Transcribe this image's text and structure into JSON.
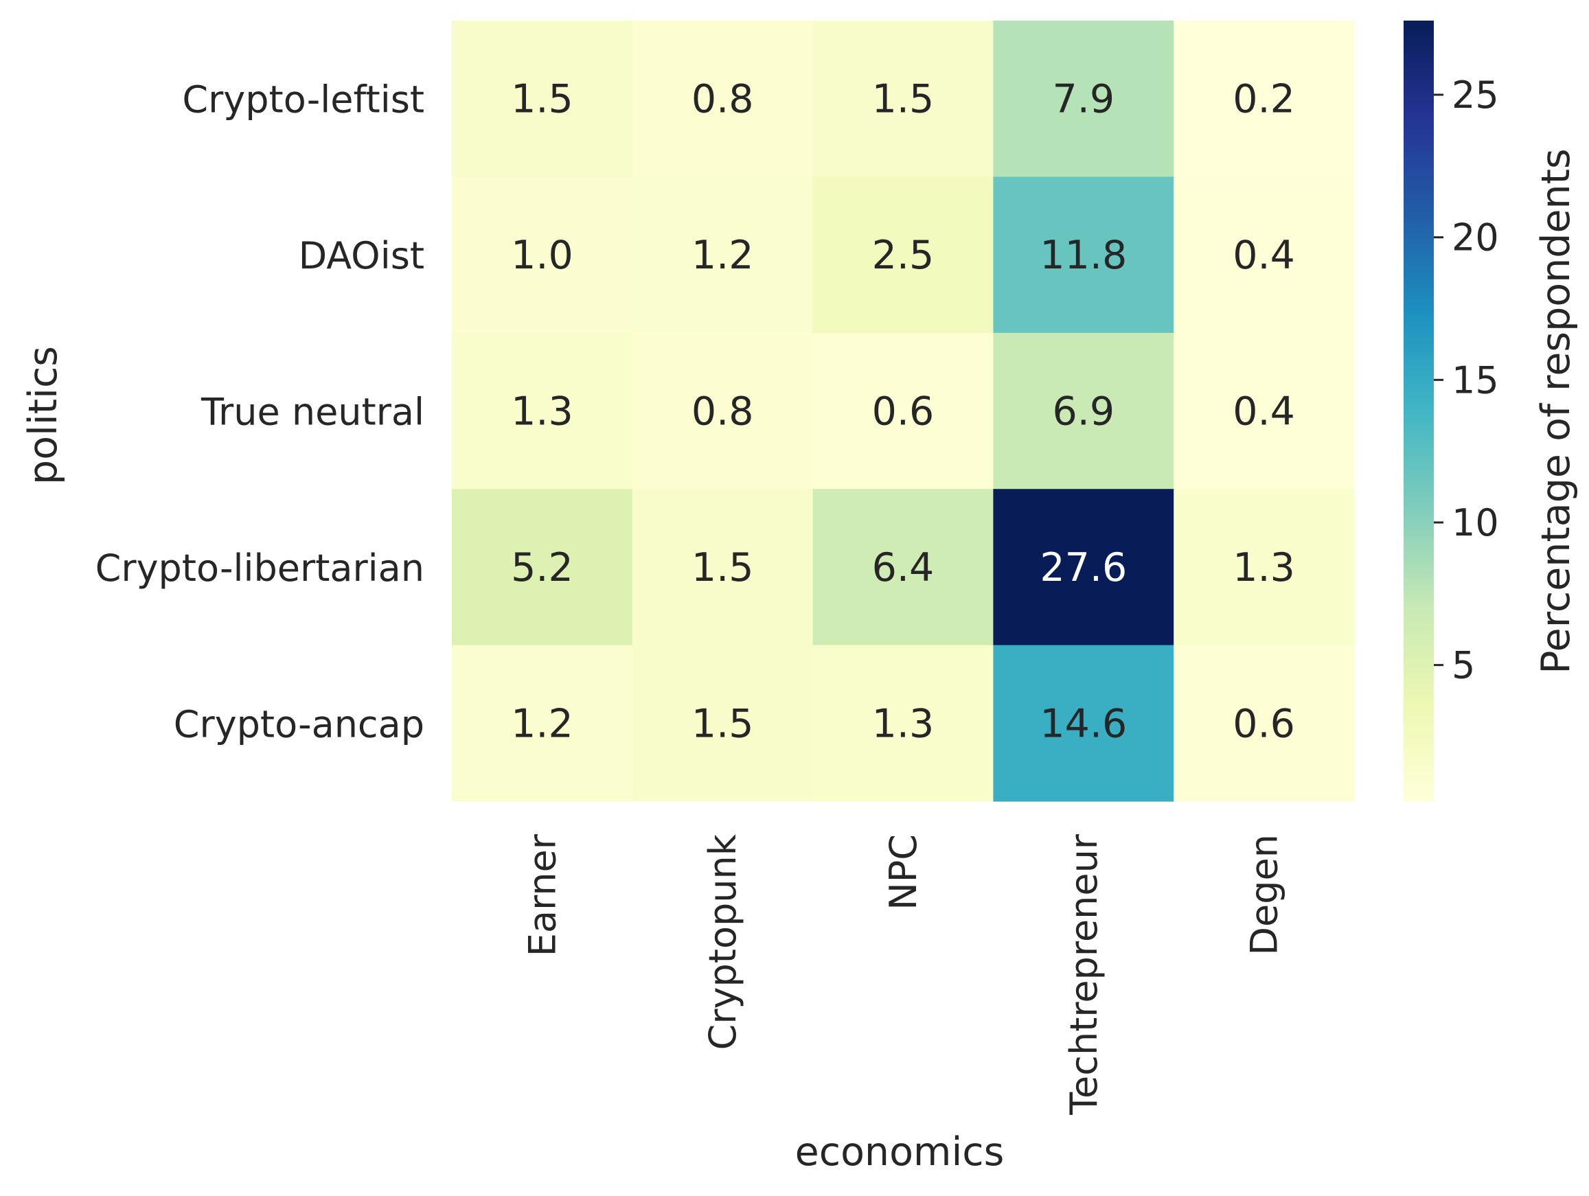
{
  "chart_data": {
    "type": "heatmap",
    "xlabel": "economics",
    "ylabel": "politics",
    "x_categories": [
      "Earner",
      "Cryptopunk",
      "NPC",
      "Techtrepreneur",
      "Degen"
    ],
    "y_categories": [
      "Crypto-leftist",
      "DAOist",
      "True neutral",
      "Crypto-libertarian",
      "Crypto-ancap"
    ],
    "values": [
      [
        1.5,
        0.8,
        1.5,
        7.9,
        0.2
      ],
      [
        1.0,
        1.2,
        2.5,
        11.8,
        0.4
      ],
      [
        1.3,
        0.8,
        0.6,
        6.9,
        0.4
      ],
      [
        5.2,
        1.5,
        6.4,
        27.6,
        1.3
      ],
      [
        1.2,
        1.5,
        1.3,
        14.6,
        0.6
      ]
    ],
    "value_labels": [
      [
        "1.5",
        "0.8",
        "1.5",
        "7.9",
        "0.2"
      ],
      [
        "1.0",
        "1.2",
        "2.5",
        "11.8",
        "0.4"
      ],
      [
        "1.3",
        "0.8",
        "0.6",
        "6.9",
        "0.4"
      ],
      [
        "5.2",
        "1.5",
        "6.4",
        "27.6",
        "1.3"
      ],
      [
        "1.2",
        "1.5",
        "1.3",
        "14.6",
        "0.6"
      ]
    ],
    "colormap": "YlGnBu",
    "colormap_stops": [
      "#ffffd9",
      "#edf8b1",
      "#c7e9b4",
      "#7fcdbb",
      "#41b6c4",
      "#1d91c0",
      "#225ea8",
      "#253494",
      "#081d58"
    ],
    "colorbar": {
      "label": "Percentage of respondents",
      "range": [
        0.2,
        27.6
      ],
      "ticks": [
        5,
        10,
        15,
        20,
        25
      ],
      "tick_labels": [
        "5",
        "10",
        "15",
        "20",
        "25"
      ]
    },
    "annotation_dark_color": "#262626",
    "annotation_light_color": "#ffffff"
  }
}
